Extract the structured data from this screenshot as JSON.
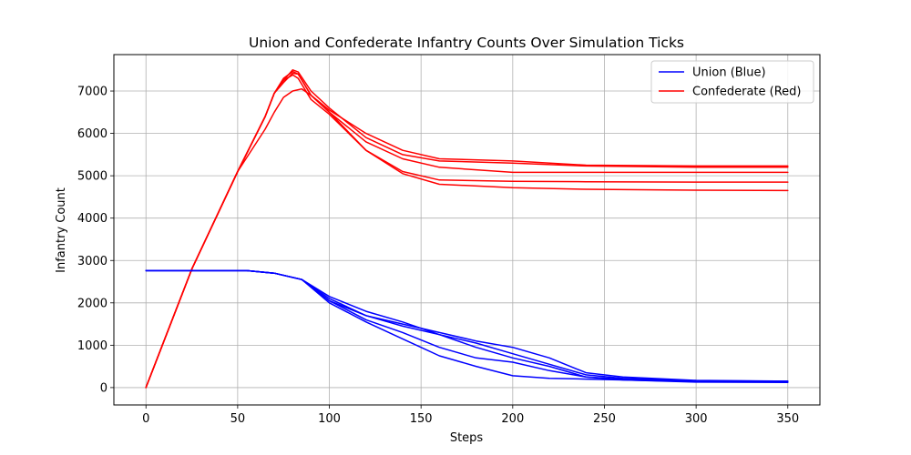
{
  "chart_data": {
    "type": "line",
    "title": "Union and Confederate Infantry Counts Over Simulation Ticks",
    "xlabel": "Steps",
    "ylabel": "Infantry Count",
    "xlim": [
      -17.5,
      367.5
    ],
    "ylim": [
      -410,
      7860
    ],
    "xticks": [
      0,
      50,
      100,
      150,
      200,
      250,
      300,
      350
    ],
    "yticks": [
      0,
      1000,
      2000,
      3000,
      4000,
      5000,
      6000,
      7000
    ],
    "grid": true,
    "legend_position": "top-right",
    "legend": [
      {
        "label": "Union (Blue)",
        "color": "#0000ff"
      },
      {
        "label": "Confederate (Red)",
        "color": "#ff0000"
      }
    ],
    "series": [
      {
        "group": "Confederate",
        "color": "#ff0000",
        "x": [
          0,
          25,
          50,
          65,
          70,
          75,
          80,
          85,
          90,
          100,
          120,
          140,
          160,
          200,
          240,
          300,
          350
        ],
        "y": [
          0,
          2800,
          5100,
          6100,
          6500,
          6850,
          7000,
          7050,
          6900,
          6550,
          6000,
          5600,
          5400,
          5350,
          5250,
          5230,
          5230
        ]
      },
      {
        "group": "Confederate",
        "color": "#ff0000",
        "x": [
          0,
          25,
          50,
          65,
          70,
          75,
          80,
          83,
          90,
          100,
          120,
          140,
          160,
          200,
          240,
          300,
          350
        ],
        "y": [
          0,
          2800,
          5100,
          6400,
          6950,
          7250,
          7500,
          7450,
          7000,
          6600,
          5900,
          5500,
          5350,
          5300,
          5230,
          5200,
          5200
        ]
      },
      {
        "group": "Confederate",
        "color": "#ff0000",
        "x": [
          0,
          25,
          50,
          65,
          70,
          75,
          80,
          83,
          90,
          100,
          120,
          140,
          160,
          200,
          240,
          300,
          350
        ],
        "y": [
          0,
          2800,
          5100,
          6400,
          6950,
          7200,
          7420,
          7400,
          6900,
          6500,
          5800,
          5400,
          5200,
          5080,
          5080,
          5080,
          5080
        ]
      },
      {
        "group": "Confederate",
        "color": "#ff0000",
        "x": [
          0,
          25,
          50,
          65,
          70,
          75,
          80,
          83,
          90,
          100,
          120,
          140,
          160,
          200,
          240,
          300,
          350
        ],
        "y": [
          0,
          2800,
          5100,
          6400,
          6950,
          7250,
          7380,
          7300,
          6800,
          6450,
          5600,
          5100,
          4900,
          4870,
          4860,
          4850,
          4850
        ]
      },
      {
        "group": "Confederate",
        "color": "#ff0000",
        "x": [
          0,
          25,
          50,
          65,
          70,
          75,
          80,
          83,
          90,
          100,
          120,
          140,
          160,
          200,
          240,
          300,
          350
        ],
        "y": [
          0,
          2800,
          5100,
          6400,
          6950,
          7300,
          7460,
          7400,
          6900,
          6500,
          5600,
          5050,
          4800,
          4720,
          4680,
          4660,
          4650
        ]
      },
      {
        "group": "Union",
        "color": "#0000ff",
        "x": [
          0,
          55,
          70,
          85,
          100,
          120,
          140,
          160,
          180,
          200,
          220,
          240,
          260,
          300,
          350
        ],
        "y": [
          2760,
          2760,
          2700,
          2550,
          2100,
          1700,
          1450,
          1250,
          1050,
          800,
          550,
          300,
          220,
          160,
          150
        ]
      },
      {
        "group": "Union",
        "color": "#0000ff",
        "x": [
          0,
          55,
          70,
          85,
          100,
          120,
          140,
          160,
          180,
          200,
          220,
          240,
          260,
          300,
          350
        ],
        "y": [
          2760,
          2760,
          2700,
          2550,
          2050,
          1600,
          1300,
          950,
          700,
          600,
          400,
          250,
          180,
          130,
          120
        ]
      },
      {
        "group": "Union",
        "color": "#0000ff",
        "x": [
          0,
          55,
          70,
          85,
          100,
          120,
          140,
          160,
          180,
          200,
          220,
          240,
          260,
          300,
          350
        ],
        "y": [
          2760,
          2760,
          2700,
          2550,
          2000,
          1550,
          1150,
          750,
          500,
          280,
          220,
          200,
          180,
          140,
          130
        ]
      },
      {
        "group": "Union",
        "color": "#0000ff",
        "x": [
          0,
          55,
          70,
          85,
          100,
          120,
          140,
          160,
          180,
          200,
          220,
          240,
          260,
          300,
          350
        ],
        "y": [
          2760,
          2760,
          2700,
          2550,
          2050,
          1700,
          1500,
          1300,
          1100,
          950,
          700,
          350,
          250,
          170,
          150
        ]
      },
      {
        "group": "Union",
        "color": "#0000ff",
        "x": [
          0,
          55,
          70,
          85,
          100,
          120,
          140,
          160,
          180,
          200,
          220,
          240,
          260,
          300,
          350
        ],
        "y": [
          2760,
          2760,
          2700,
          2550,
          2150,
          1800,
          1550,
          1250,
          950,
          700,
          500,
          250,
          200,
          150,
          130
        ]
      }
    ]
  }
}
